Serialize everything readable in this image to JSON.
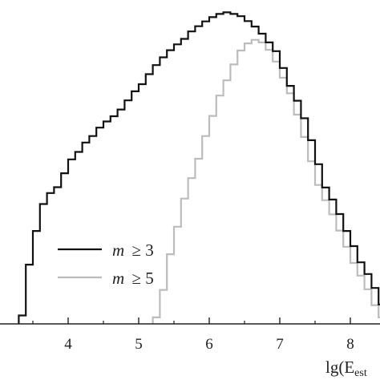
{
  "chart_data": {
    "type": "line",
    "step": true,
    "xlabel": "lg(E",
    "xlabel_sub": "est",
    "xlabel_suffix": "",
    "xlim": [
      3.1,
      8.45
    ],
    "ylim": [
      0,
      1.0
    ],
    "x_ticks": [
      4,
      5,
      6,
      7,
      8
    ],
    "x_tick_labels": [
      "4",
      "5",
      "6",
      "7",
      "8"
    ],
    "grid": false,
    "legend_placement": "bottom-left",
    "series": [
      {
        "name": "m ≥ 3",
        "legend_var": "m",
        "legend_op": "≥ 3",
        "color": "#111111",
        "x": [
          3.3,
          3.4,
          3.5,
          3.6,
          3.7,
          3.8,
          3.9,
          4.0,
          4.1,
          4.2,
          4.3,
          4.4,
          4.5,
          4.6,
          4.7,
          4.8,
          4.9,
          5.0,
          5.1,
          5.2,
          5.3,
          5.4,
          5.5,
          5.6,
          5.7,
          5.8,
          5.9,
          6.0,
          6.1,
          6.2,
          6.3,
          6.4,
          6.5,
          6.6,
          6.7,
          6.8,
          6.9,
          7.0,
          7.1,
          7.2,
          7.3,
          7.4,
          7.5,
          7.6,
          7.7,
          7.8,
          7.9,
          8.0,
          8.1,
          8.2,
          8.3,
          8.4
        ],
        "y": [
          0.026,
          0.183,
          0.287,
          0.37,
          0.404,
          0.422,
          0.465,
          0.508,
          0.531,
          0.56,
          0.58,
          0.606,
          0.625,
          0.641,
          0.662,
          0.69,
          0.718,
          0.74,
          0.771,
          0.799,
          0.823,
          0.845,
          0.863,
          0.88,
          0.903,
          0.919,
          0.934,
          0.947,
          0.957,
          0.962,
          0.957,
          0.95,
          0.935,
          0.918,
          0.896,
          0.869,
          0.842,
          0.79,
          0.735,
          0.689,
          0.635,
          0.567,
          0.493,
          0.421,
          0.384,
          0.339,
          0.287,
          0.24,
          0.19,
          0.154,
          0.111,
          0.06
        ]
      },
      {
        "name": "m ≥ 5",
        "legend_var": "m",
        "legend_op": "≥ 5",
        "color": "#bcbcbc",
        "x": [
          5.2,
          5.3,
          5.4,
          5.5,
          5.6,
          5.7,
          5.8,
          5.9,
          6.0,
          6.1,
          6.2,
          6.3,
          6.4,
          6.5,
          6.6,
          6.7,
          6.8,
          6.9,
          7.0,
          7.1,
          7.2,
          7.3,
          7.4,
          7.5,
          7.6,
          7.7,
          7.8,
          7.9,
          8.0,
          8.1,
          8.2,
          8.3,
          8.4
        ],
        "y": [
          0.02,
          0.105,
          0.215,
          0.3,
          0.387,
          0.45,
          0.51,
          0.58,
          0.642,
          0.705,
          0.752,
          0.801,
          0.844,
          0.866,
          0.877,
          0.869,
          0.846,
          0.81,
          0.76,
          0.712,
          0.646,
          0.577,
          0.502,
          0.429,
          0.382,
          0.338,
          0.288,
          0.238,
          0.188,
          0.149,
          0.107,
          0.058,
          0.02
        ]
      }
    ]
  }
}
